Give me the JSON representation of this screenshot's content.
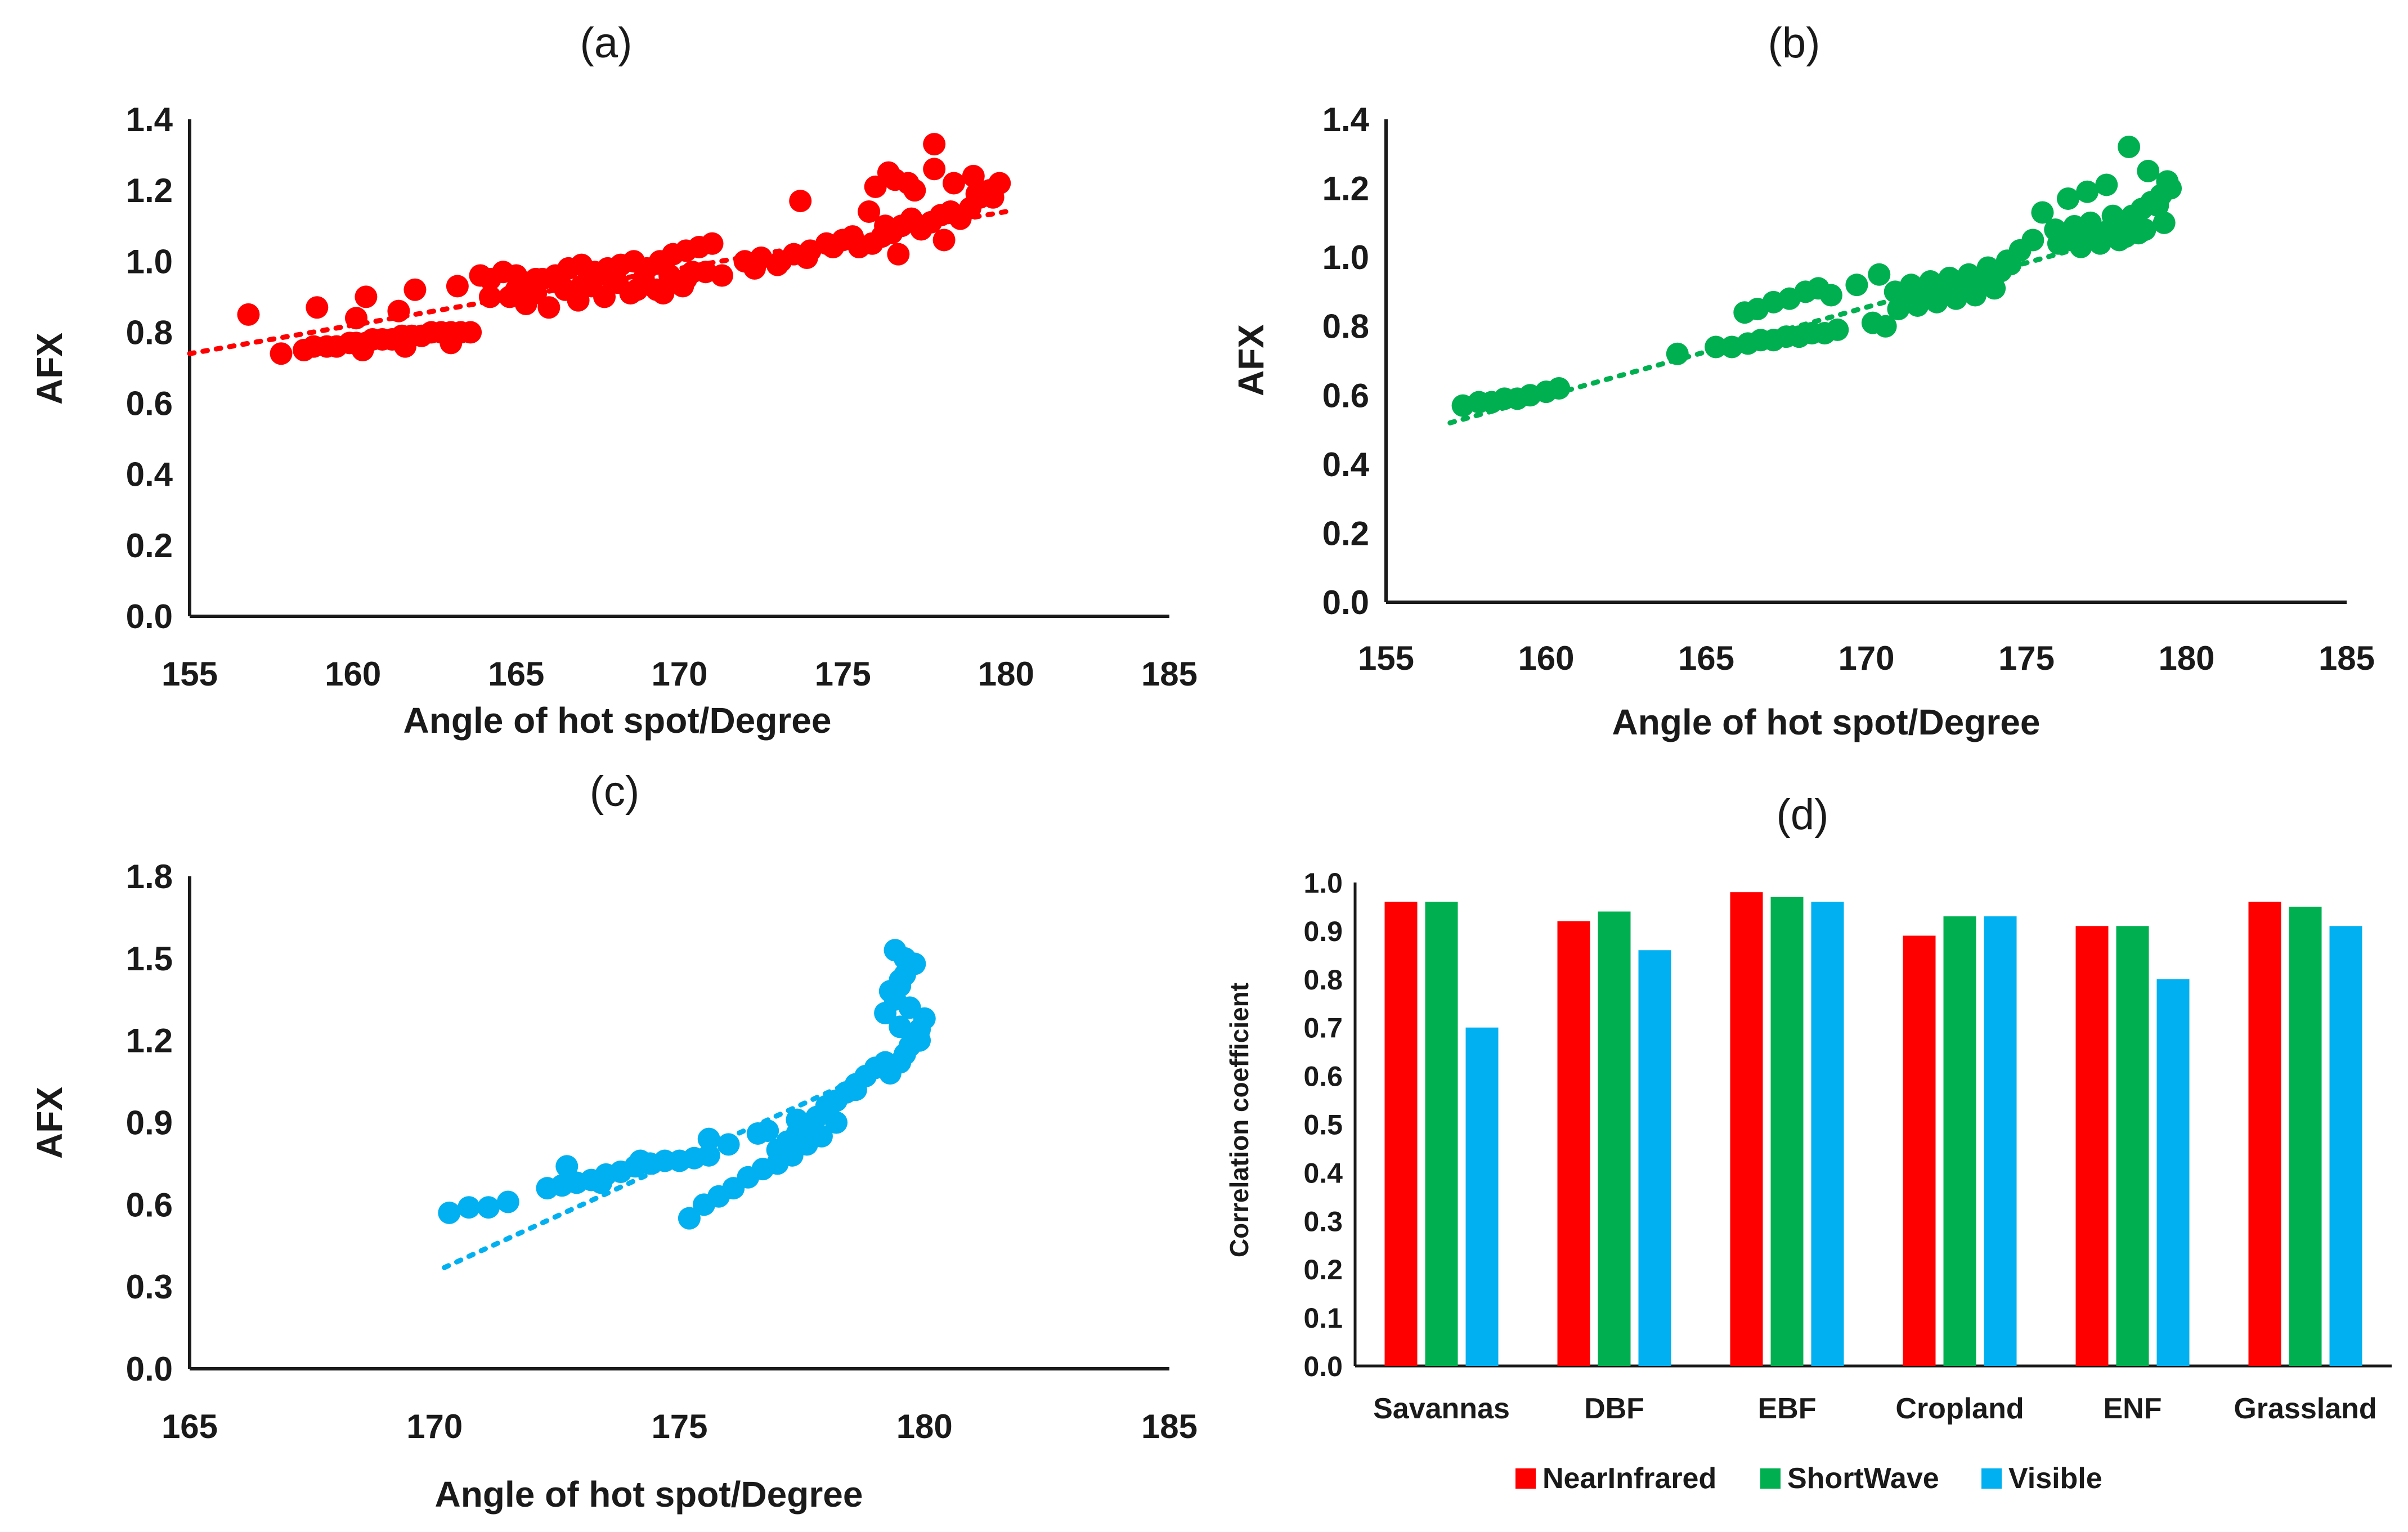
{
  "chart_data": [
    {
      "id": "a",
      "type": "scatter",
      "panel_label": "(a)",
      "xlabel": "Angle of hot spot/Degree",
      "ylabel": "AFX",
      "xlim": [
        155,
        185
      ],
      "ylim": [
        0.0,
        1.4
      ],
      "xticks": [
        "155",
        "160",
        "165",
        "170",
        "175",
        "180",
        "185"
      ],
      "yticks": [
        "0.0",
        "0.2",
        "0.4",
        "0.6",
        "0.8",
        "1.0",
        "1.2",
        "1.4"
      ],
      "color": "#ff0000",
      "trendline": {
        "style": "dotted",
        "x": [
          155.0,
          180.0
        ],
        "y": [
          0.74,
          1.14
        ]
      },
      "points": {
        "x": [
          156.8,
          157.8,
          158.5,
          158.8,
          159.2,
          159.5,
          159.9,
          160.1,
          160.4,
          160.6,
          160.9,
          161.2,
          161.5,
          161.8,
          162.1,
          162.4,
          162.7,
          163.0,
          163.3,
          163.6,
          163.0,
          161.6,
          160.3,
          158.9,
          160.1,
          160.4,
          161.4,
          161.9,
          163.2,
          163.9,
          164.2,
          164.6,
          165.0,
          165.4,
          165.8,
          166.2,
          166.6,
          167.0,
          167.4,
          167.8,
          168.2,
          168.6,
          169.0,
          169.4,
          169.8,
          170.2,
          170.6,
          171.0,
          164.8,
          165.6,
          166.5,
          167.3,
          168.1,
          168.9,
          169.7,
          170.4,
          165.3,
          166.0,
          166.9,
          167.7,
          168.5,
          169.3,
          170.1,
          164.2,
          165.0,
          165.6,
          166.3,
          167.0,
          167.8,
          168.7,
          169.5,
          170.2,
          170.8,
          171.3,
          172.0,
          172.5,
          173.0,
          173.5,
          174.0,
          174.5,
          175.0,
          175.5,
          172.3,
          173.1,
          173.9,
          174.7,
          175.3,
          173.7,
          175.9,
          176.2,
          176.5,
          176.8,
          177.1,
          177.4,
          177.7,
          178.0,
          178.3,
          178.6,
          178.9,
          179.2,
          179.5,
          179.8,
          176.0,
          176.6,
          177.2,
          177.8,
          178.4,
          179.0,
          179.6,
          176.4,
          177.0,
          176.7,
          178.1,
          177.8,
          179.1,
          175.8,
          176.3
        ],
        "y": [
          0.85,
          0.74,
          0.75,
          0.76,
          0.76,
          0.76,
          0.77,
          0.77,
          0.77,
          0.78,
          0.78,
          0.78,
          0.79,
          0.79,
          0.79,
          0.8,
          0.8,
          0.8,
          0.8,
          0.8,
          0.77,
          0.76,
          0.75,
          0.87,
          0.84,
          0.9,
          0.86,
          0.92,
          0.93,
          0.96,
          0.95,
          0.97,
          0.96,
          0.93,
          0.95,
          0.96,
          0.98,
          0.99,
          0.97,
          0.98,
          0.99,
          1.0,
          0.98,
          1.0,
          1.02,
          1.03,
          1.04,
          1.05,
          0.9,
          0.91,
          0.92,
          0.93,
          0.94,
          0.95,
          0.96,
          0.97,
          0.88,
          0.87,
          0.89,
          0.9,
          0.91,
          0.92,
          0.93,
          0.9,
          0.92,
          0.95,
          0.94,
          0.93,
          0.96,
          0.92,
          0.91,
          0.95,
          0.97,
          0.96,
          1.0,
          1.01,
          0.99,
          1.02,
          1.03,
          1.05,
          1.06,
          1.04,
          0.98,
          1.0,
          1.01,
          1.04,
          1.07,
          1.17,
          1.05,
          1.07,
          1.08,
          1.1,
          1.12,
          1.09,
          1.11,
          1.13,
          1.14,
          1.12,
          1.15,
          1.18,
          1.2,
          1.22,
          1.21,
          1.23,
          1.2,
          1.26,
          1.22,
          1.24,
          1.18,
          1.25,
          1.22,
          1.02,
          1.06,
          1.33,
          1.19,
          1.14,
          1.1
        ]
      }
    },
    {
      "id": "b",
      "type": "scatter",
      "panel_label": "(b)",
      "xlabel": "Angle of hot spot/Degree",
      "ylabel": "AFX",
      "xlim": [
        155,
        185
      ],
      "ylim": [
        0.0,
        1.4
      ],
      "xticks": [
        "155",
        "160",
        "165",
        "170",
        "175",
        "180",
        "185"
      ],
      "yticks": [
        "0.0",
        "0.2",
        "0.4",
        "0.6",
        "0.8",
        "1.0",
        "1.2",
        "1.4"
      ],
      "color": "#00b050",
      "trendline": {
        "style": "dotted",
        "x": [
          157.0,
          179.5
        ],
        "y": [
          0.52,
          1.1
        ]
      },
      "points": {
        "x": [
          157.4,
          157.9,
          158.3,
          158.7,
          159.1,
          159.5,
          160.0,
          160.4,
          164.1,
          165.3,
          165.8,
          166.3,
          166.7,
          167.1,
          167.5,
          167.9,
          168.3,
          168.7,
          169.1,
          166.2,
          166.6,
          167.1,
          167.6,
          168.1,
          168.5,
          168.9,
          169.7,
          170.4,
          170.9,
          171.2,
          171.5,
          171.8,
          172.1,
          172.4,
          172.7,
          173.0,
          173.3,
          173.6,
          173.9,
          174.2,
          174.5,
          171.0,
          171.6,
          172.2,
          172.8,
          173.4,
          174.0,
          171.4,
          172.0,
          172.6,
          173.2,
          173.8,
          174.4,
          174.8,
          170.2,
          170.6,
          175.2,
          176.0,
          176.4,
          176.8,
          177.2,
          177.6,
          178.0,
          178.3,
          178.6,
          178.9,
          179.2,
          179.5,
          176.3,
          176.9,
          177.5,
          178.1,
          178.7,
          179.3,
          175.5,
          176.7,
          177.3,
          177.9,
          178.5,
          179.1,
          178.2,
          178.8,
          179.4,
          177.0,
          177.7,
          175.9,
          176.5
        ],
        "y": [
          0.57,
          0.58,
          0.58,
          0.59,
          0.59,
          0.6,
          0.61,
          0.62,
          0.72,
          0.74,
          0.74,
          0.75,
          0.76,
          0.76,
          0.77,
          0.77,
          0.78,
          0.78,
          0.79,
          0.84,
          0.85,
          0.87,
          0.88,
          0.9,
          0.91,
          0.89,
          0.92,
          0.95,
          0.9,
          0.88,
          0.88,
          0.89,
          0.9,
          0.9,
          0.91,
          0.92,
          0.93,
          0.94,
          0.95,
          0.96,
          0.98,
          0.85,
          0.86,
          0.87,
          0.88,
          0.89,
          0.91,
          0.92,
          0.93,
          0.94,
          0.95,
          0.97,
          0.99,
          1.02,
          0.81,
          0.8,
          1.05,
          1.04,
          1.05,
          1.06,
          1.07,
          1.08,
          1.1,
          1.12,
          1.14,
          1.16,
          1.18,
          1.2,
          1.17,
          1.19,
          1.21,
          1.06,
          1.08,
          1.1,
          1.13,
          1.03,
          1.04,
          1.05,
          1.07,
          1.15,
          1.32,
          1.25,
          1.22,
          1.1,
          1.12,
          1.08,
          1.09
        ]
      }
    },
    {
      "id": "c",
      "type": "scatter",
      "panel_label": "(c)",
      "xlabel": "Angle of hot spot/Degree",
      "ylabel": "AFX",
      "xlim": [
        165,
        185
      ],
      "ylim": [
        0.0,
        1.8
      ],
      "xticks": [
        "165",
        "170",
        "175",
        "180",
        "185"
      ],
      "yticks": [
        "0.0",
        "0.3",
        "0.6",
        "0.9",
        "1.2",
        "1.5",
        "1.8"
      ],
      "color": "#00b0f0",
      "trendline": {
        "style": "dotted",
        "x": [
          170.2,
          179.5
        ],
        "y": [
          0.37,
          1.13
        ]
      },
      "points": {
        "x": [
          170.3,
          170.7,
          171.1,
          171.5,
          172.3,
          172.6,
          172.9,
          173.2,
          173.5,
          173.8,
          174.1,
          174.4,
          174.7,
          175.0,
          175.3,
          175.6,
          172.7,
          173.4,
          174.2,
          175.2,
          175.5,
          175.8,
          176.1,
          176.4,
          176.7,
          175.6,
          176.0,
          176.6,
          177.0,
          177.2,
          177.4,
          177.6,
          177.8,
          178.0,
          178.2,
          178.4,
          178.6,
          178.8,
          179.0,
          179.2,
          177.0,
          177.3,
          177.6,
          177.9,
          178.2,
          176.8,
          177.4,
          178.0,
          178.6,
          179.3,
          179.5,
          179.6,
          179.7,
          179.8,
          179.9,
          180.0,
          179.4,
          179.5,
          179.6,
          179.3,
          179.6,
          179.8,
          179.4,
          179.7,
          179.5,
          179.9,
          179.2,
          179.5
        ],
        "y": [
          0.57,
          0.59,
          0.59,
          0.61,
          0.66,
          0.67,
          0.68,
          0.69,
          0.71,
          0.72,
          0.74,
          0.75,
          0.76,
          0.76,
          0.77,
          0.78,
          0.74,
          0.68,
          0.76,
          0.55,
          0.6,
          0.63,
          0.66,
          0.7,
          0.73,
          0.84,
          0.82,
          0.86,
          0.8,
          0.83,
          0.86,
          0.89,
          0.92,
          0.95,
          0.98,
          1.01,
          1.04,
          1.07,
          1.1,
          1.12,
          0.75,
          0.78,
          0.82,
          0.85,
          0.9,
          0.87,
          0.91,
          0.96,
          1.02,
          1.08,
          1.12,
          1.15,
          1.18,
          1.21,
          1.24,
          1.28,
          1.35,
          1.4,
          1.44,
          1.38,
          1.5,
          1.48,
          1.53,
          1.32,
          1.25,
          1.2,
          1.3,
          1.42
        ]
      }
    },
    {
      "id": "d",
      "type": "bar",
      "panel_label": "(d)",
      "ylabel": "Correlation coefficient",
      "ylim": [
        0.0,
        1.0
      ],
      "yticks": [
        "0.0",
        "0.1",
        "0.2",
        "0.3",
        "0.4",
        "0.5",
        "0.6",
        "0.7",
        "0.8",
        "0.9",
        "1.0"
      ],
      "categories": [
        "Savannas",
        "DBF",
        "EBF",
        "Cropland",
        "ENF",
        "Grassland"
      ],
      "series": [
        {
          "name": "NearInfrared",
          "color": "#ff0000",
          "values": [
            0.96,
            0.92,
            0.98,
            0.89,
            0.91,
            0.96
          ]
        },
        {
          "name": "ShortWave",
          "color": "#00b050",
          "values": [
            0.96,
            0.94,
            0.97,
            0.93,
            0.91,
            0.95
          ]
        },
        {
          "name": "Visible",
          "color": "#00b0f0",
          "values": [
            0.7,
            0.86,
            0.96,
            0.93,
            0.8,
            0.91
          ]
        }
      ],
      "legend_position": "bottom"
    }
  ]
}
